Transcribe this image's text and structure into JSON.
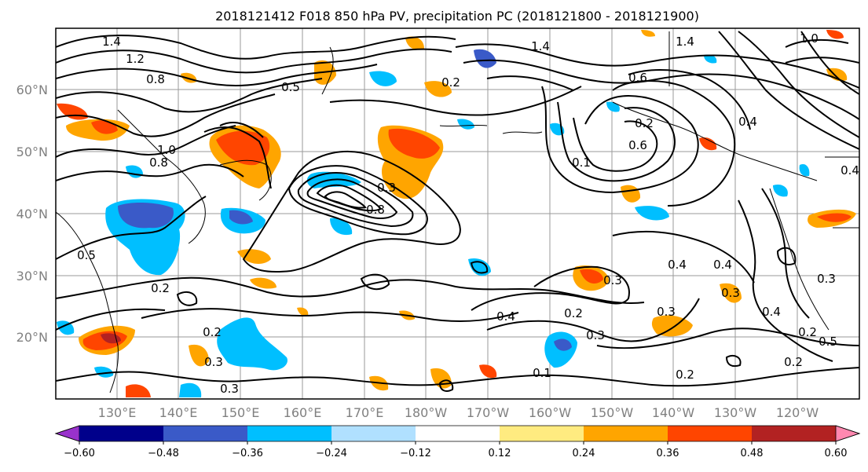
{
  "title": "2018121412 F018 850 hPa PV, precipitation PC (2018121800 - 2018121900)",
  "lat_labels": [
    "60°N",
    "50°N",
    "40°N",
    "30°N",
    "20°N"
  ],
  "lon_labels": [
    "130°E",
    "140°E",
    "150°E",
    "160°E",
    "170°E",
    "180°W",
    "170°W",
    "160°W",
    "150°W",
    "140°W",
    "130°W",
    "120°W"
  ],
  "colorbar": {
    "colors": [
      "#9932CC",
      "#00008B",
      "#3A5AC8",
      "#00BFFF",
      "#B0E0FF",
      "#FFFFFF",
      "#FFEB80",
      "#FFA500",
      "#FF4500",
      "#B22222",
      "#FF88B0"
    ],
    "tick_labels": [
      "−0.60",
      "−0.48",
      "−0.36",
      "−0.24",
      "−0.12",
      "0.12",
      "0.24",
      "0.36",
      "0.48",
      "0.60"
    ]
  },
  "contour_labels": [
    {
      "text": "1.4"
    },
    {
      "text": "1.2"
    },
    {
      "text": "0.8"
    },
    {
      "text": "0.5"
    },
    {
      "text": "0.2"
    },
    {
      "text": "1.4"
    },
    {
      "text": "1.0"
    },
    {
      "text": "0.8"
    },
    {
      "text": "0.6"
    },
    {
      "text": "0.2"
    },
    {
      "text": "0.6"
    },
    {
      "text": "0.1"
    },
    {
      "text": "1.4"
    },
    {
      "text": "0.4"
    },
    {
      "text": "1.0"
    },
    {
      "text": "0.5"
    },
    {
      "text": "0.8"
    },
    {
      "text": "0.3"
    },
    {
      "text": "0.2"
    },
    {
      "text": "0.3"
    },
    {
      "text": "0.4"
    },
    {
      "text": "0.2"
    },
    {
      "text": "0.3"
    },
    {
      "text": "0.3"
    },
    {
      "text": "0.4"
    },
    {
      "text": "0.4"
    },
    {
      "text": "0.3"
    },
    {
      "text": "0.3"
    },
    {
      "text": "0.2"
    },
    {
      "text": "0.4"
    },
    {
      "text": "0.5"
    },
    {
      "text": "0.2"
    },
    {
      "text": "0.3"
    },
    {
      "text": "0.2"
    },
    {
      "text": "0.1"
    },
    {
      "text": "0.2"
    },
    {
      "text": "0.4"
    },
    {
      "text": "0.3"
    }
  ]
}
